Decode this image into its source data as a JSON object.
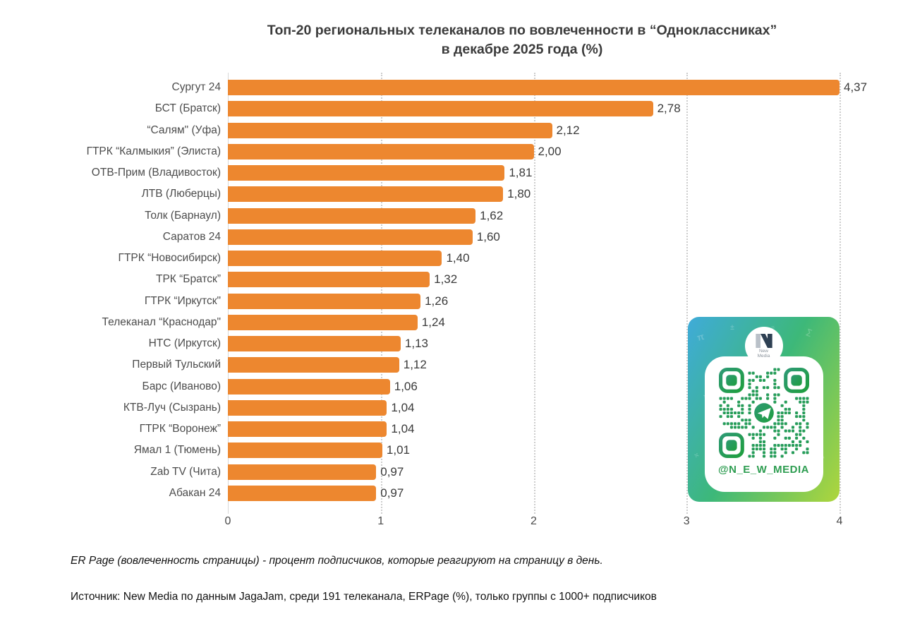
{
  "title": {
    "line1": "Топ-20 региональных телеканалов по вовлеченности в “Одноклассниках”",
    "line2": "в декабре 2025 года (%)"
  },
  "chart_data": {
    "type": "bar",
    "orientation": "horizontal",
    "title": "Топ-20 региональных телеканалов по вовлеченности в “Одноклассниках” в декабре 2025 года (%)",
    "categories": [
      "Сургут 24",
      "БСТ (Братск)",
      "“Салям\" (Уфа)",
      "ГТРК “Калмыкия” (Элиста)",
      "ОТВ-Прим (Владивосток)",
      "ЛТВ (Люберцы)",
      "Толк (Барнаул)",
      "Саратов 24",
      "ГТРК “Новосибирск)",
      "ТРК “Братск”",
      "ГТРК “Иркутск\"",
      "Телеканал “Краснодар\"",
      "НТС (Иркутск)",
      "Первый Тульский",
      "Барс (Иваново)",
      "КТВ-Луч (Сызрань)",
      "ГТРК “Воронеж”",
      "Ямал 1 (Тюмень)",
      "Zab TV (Чита)",
      "Абакан 24"
    ],
    "values": [
      4.37,
      2.78,
      2.12,
      2.0,
      1.81,
      1.8,
      1.62,
      1.6,
      1.4,
      1.32,
      1.26,
      1.24,
      1.13,
      1.12,
      1.06,
      1.04,
      1.04,
      1.01,
      0.97,
      0.97
    ],
    "value_labels": [
      "4,37",
      "2,78",
      "2,12",
      "2,00",
      "1,81",
      "1,80",
      "1,62",
      "1,60",
      "1,40",
      "1,32",
      "1,26",
      "1,24",
      "1,13",
      "1,12",
      "1,06",
      "1,04",
      "1,04",
      "1,01",
      "0,97",
      "0,97"
    ],
    "xlabel": "",
    "ylabel": "",
    "xlim": [
      0,
      4
    ],
    "x_ticks": [
      0,
      1,
      2,
      3,
      4
    ],
    "bar_color": "#ED872F",
    "grid": "vertical dotted",
    "legend": "none",
    "max_bar_clipped_at_axis_end": true
  },
  "footer": {
    "definition": "ER Page (вовлеченность страницы) - процент подписчиков, которые реагируют на страницу в день.",
    "source": "Источник: New Media по данным JagaJam, среди 191 телеканала, ERPage (%), только группы с 1000+ подписчиков"
  },
  "qr_badge": {
    "handle": "@N_E_W_MEDIA",
    "brand_line1": "New",
    "brand_line2": "Media",
    "card_gradient": [
      "#3FABD9",
      "#3DB879",
      "#AFD63C"
    ],
    "qr_color_start": "#2D9A74",
    "qr_color_end": "#1F9E3E",
    "handle_color": "#2E9D51",
    "center_icon": "telegram-paper-plane",
    "doodles": [
      "π",
      "∑",
      "√",
      "∞",
      "÷",
      "∆",
      "∫",
      "θ",
      "±",
      "≈"
    ]
  }
}
